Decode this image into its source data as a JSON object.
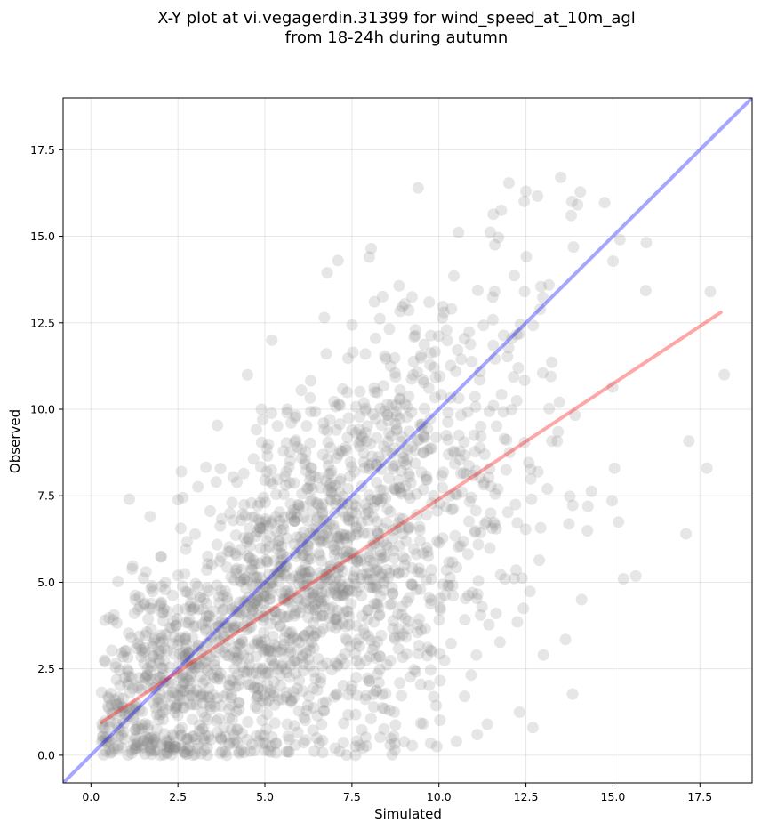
{
  "chart_data": {
    "type": "scatter",
    "title_line1": "X-Y plot at vi.vegagerdin.31399 for wind_speed_at_10m_agl",
    "title_line2": "from 18-24h during autumn",
    "xlabel": "Simulated",
    "ylabel": "Observed",
    "xlim": [
      -0.8,
      19.0
    ],
    "ylim": [
      -0.8,
      19.0
    ],
    "xticks": [
      0.0,
      2.5,
      5.0,
      7.5,
      10.0,
      12.5,
      15.0,
      17.5
    ],
    "yticks": [
      0.0,
      2.5,
      5.0,
      7.5,
      10.0,
      12.5,
      15.0,
      17.5
    ],
    "xtick_labels": [
      "0.0",
      "2.5",
      "5.0",
      "7.5",
      "10.0",
      "12.5",
      "15.0",
      "17.5"
    ],
    "ytick_labels": [
      "0.0",
      "2.5",
      "5.0",
      "7.5",
      "10.0",
      "12.5",
      "15.0",
      "17.5"
    ],
    "grid": true,
    "marker_color": "#808080",
    "marker_opacity": 0.2,
    "num_points": 2000,
    "series": [
      {
        "kind": "scatter",
        "points_sample": [
          [
            0.4,
            3.9
          ],
          [
            1.1,
            7.4
          ],
          [
            1.7,
            6.9
          ],
          [
            2.6,
            8.2
          ],
          [
            3.6,
            7.9
          ],
          [
            4.9,
            10.0
          ],
          [
            5.2,
            12.0
          ],
          [
            7.1,
            14.3
          ],
          [
            8.0,
            14.4
          ],
          [
            9.4,
            16.4
          ],
          [
            12.5,
            16.3
          ],
          [
            13.5,
            16.7
          ],
          [
            13.8,
            15.6
          ],
          [
            15.2,
            14.9
          ],
          [
            17.8,
            13.4
          ],
          [
            18.2,
            11.0
          ],
          [
            17.1,
            6.4
          ],
          [
            15.3,
            5.1
          ],
          [
            14.1,
            4.5
          ],
          [
            13.0,
            2.9
          ],
          [
            12.7,
            0.8
          ],
          [
            11.1,
            0.6
          ],
          [
            10.5,
            0.4
          ],
          [
            7.6,
            0.0
          ],
          [
            3.9,
            0.0
          ],
          [
            2.0,
            0.0
          ],
          [
            0.6,
            0.1
          ],
          [
            1.3,
            0.2
          ],
          [
            8.6,
            0.3
          ],
          [
            17.7,
            8.3
          ]
        ]
      },
      {
        "kind": "line",
        "color": "#0000ff",
        "opacity": 0.35,
        "x": [
          -0.8,
          19.0
        ],
        "y": [
          -0.8,
          19.0
        ]
      },
      {
        "kind": "line",
        "color": "#ff0000",
        "opacity": 0.35,
        "x": [
          0.3,
          18.1
        ],
        "y": [
          0.95,
          12.8
        ]
      }
    ]
  }
}
